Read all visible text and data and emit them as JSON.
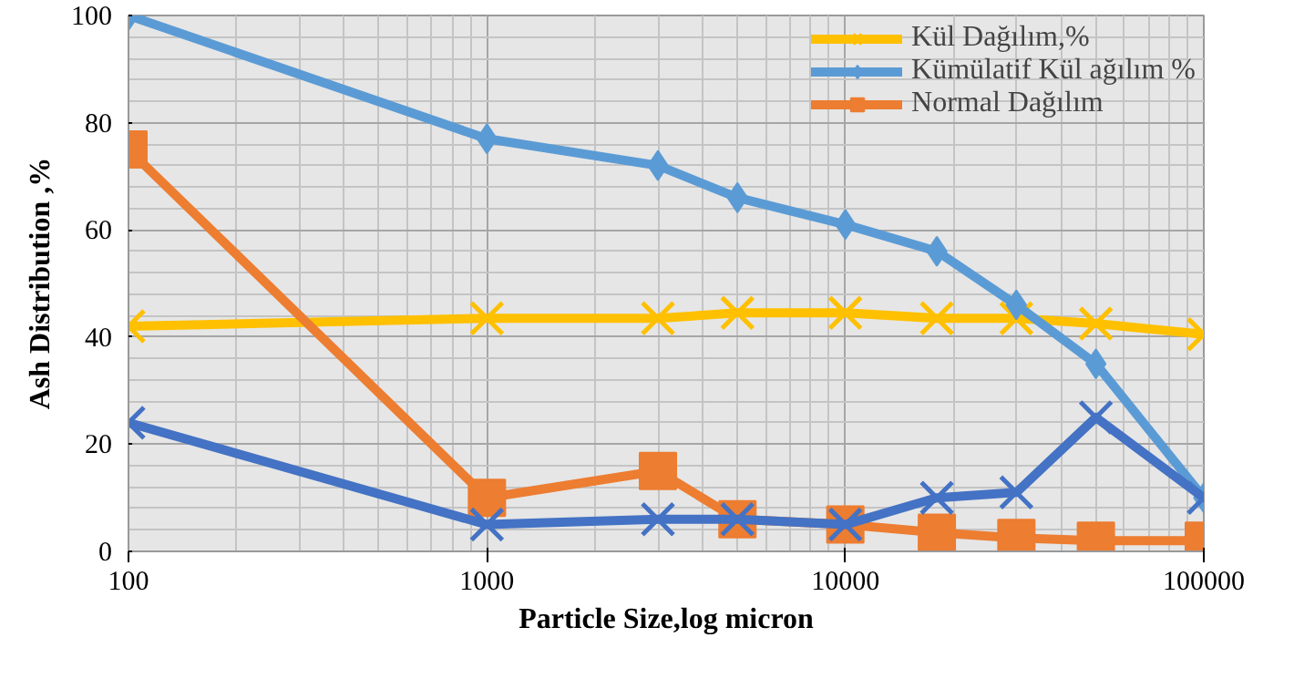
{
  "chart_data": {
    "type": "line",
    "xlabel": "Particle Size,log micron",
    "ylabel": "Ash Distribution ,%",
    "x": [
      100,
      1000,
      3000,
      5000,
      10000,
      18000,
      30000,
      50000,
      100000
    ],
    "series": [
      {
        "name": "Kül Dağılım,%",
        "color": "#ffc000",
        "marker": "cross",
        "values": [
          42,
          43.5,
          43.5,
          44.5,
          44.5,
          43.5,
          43.5,
          42.5,
          40.5
        ]
      },
      {
        "name": "Kümülatif Kül ağılım %",
        "color": "#5b9bd5",
        "marker": "diamond",
        "values": [
          100,
          77,
          72,
          66,
          61,
          56,
          46,
          35,
          10
        ]
      },
      {
        "name": "Normal Dağılım",
        "color": "#ed7d31",
        "marker": "square",
        "values": [
          75,
          10,
          15,
          6,
          5,
          3.5,
          2.5,
          2,
          2
        ]
      },
      {
        "color": "#4472c4",
        "marker": "cross",
        "values": [
          24,
          5,
          6,
          6,
          5,
          10,
          11,
          25,
          10
        ]
      }
    ],
    "log": "x",
    "xlim": [
      100,
      100000
    ],
    "xticks": [
      100,
      1000,
      10000,
      100000
    ],
    "ylim": [
      0,
      100
    ],
    "yticks": [
      0,
      20,
      40,
      60,
      80,
      100
    ],
    "grid": true,
    "legend": "top right"
  }
}
